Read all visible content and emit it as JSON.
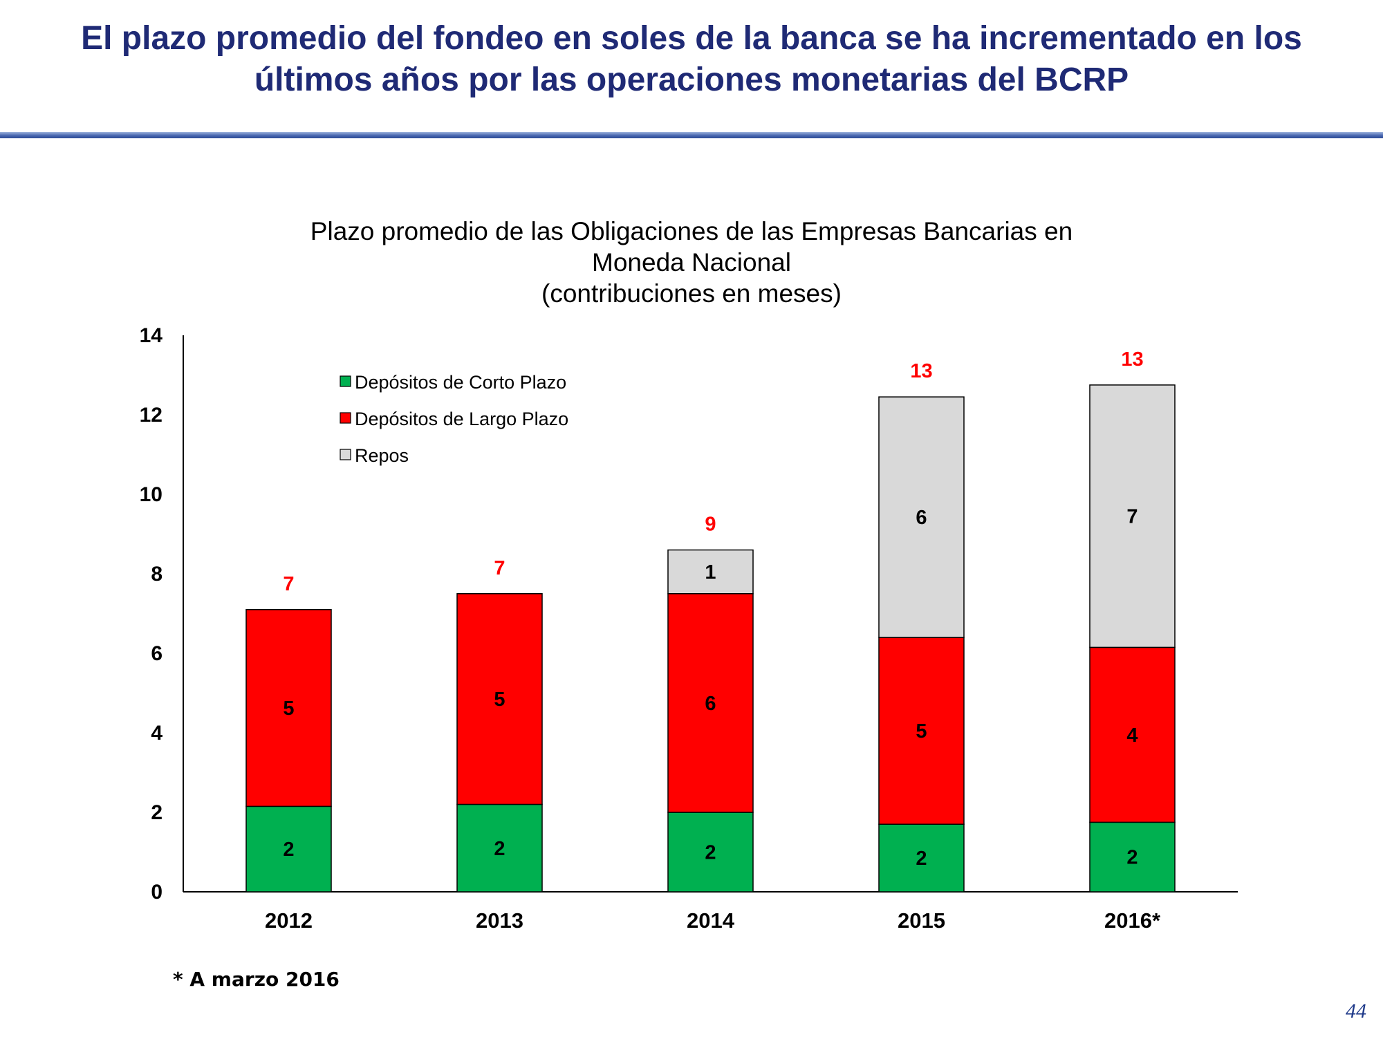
{
  "slide": {
    "title_line1": "El plazo promedio del fondeo en soles de la banca se ha incrementado en los",
    "title_line2": "últimos años por las operaciones monetarias del BCRP",
    "footnote": "* A marzo 2016",
    "page_number": "44",
    "title_color": "#1f2a75"
  },
  "chart_data": {
    "type": "bar",
    "stacked": true,
    "title_lines": [
      "Plazo promedio de las Obligaciones de las Empresas Bancarias en",
      "Moneda Nacional",
      "(contribuciones en meses)"
    ],
    "categories": [
      "2012",
      "2013",
      "2014",
      "2015",
      "2016*"
    ],
    "series": [
      {
        "name": "Depósitos de Corto Plazo",
        "color": "#00b050",
        "values": [
          2.15,
          2.2,
          2.0,
          1.7,
          1.75
        ],
        "labels": [
          "2",
          "2",
          "2",
          "2",
          "2"
        ]
      },
      {
        "name": "Depósitos de Largo Plazo",
        "color": "#ff0000",
        "values": [
          4.95,
          5.3,
          5.5,
          4.7,
          4.4
        ],
        "labels": [
          "5",
          "5",
          "6",
          "5",
          "4"
        ]
      },
      {
        "name": "Repos",
        "color": "#d9d9d9",
        "values": [
          0,
          0,
          1.1,
          6.05,
          6.6
        ],
        "labels": [
          "",
          "",
          "1",
          "6",
          "7"
        ]
      }
    ],
    "totals": [
      "7",
      "7",
      "9",
      "13",
      "13"
    ],
    "total_color": "#ff0000",
    "ylim": [
      0,
      14
    ],
    "yticks": [
      "0",
      "2",
      "4",
      "6",
      "8",
      "10",
      "12",
      "14"
    ],
    "legend_position": "top-left",
    "grid": false
  }
}
